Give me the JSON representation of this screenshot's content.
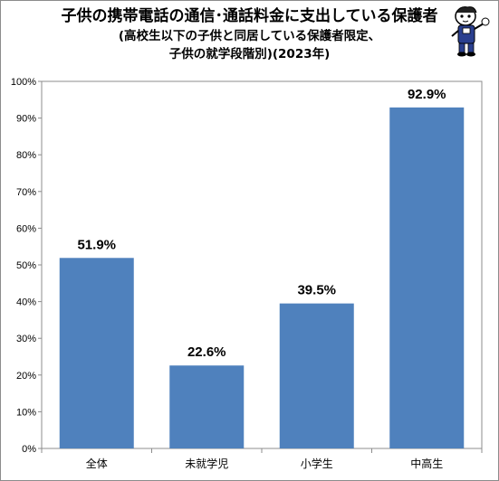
{
  "title": {
    "line1": "子供の携帯電話の通信･通話料金に支出している保護者",
    "line2": "(高校生以下の子供と同居している保護者限定、",
    "line3": "子供の就学段階別)(2023年)"
  },
  "mascot_icon": "mascot-character-icon",
  "colors": {
    "bar": "#4f81bd",
    "grid": "#8c8c8c"
  },
  "chart_data": {
    "type": "bar",
    "categories": [
      "全体",
      "未就学児",
      "小学生",
      "中高生"
    ],
    "values": [
      51.9,
      22.6,
      39.5,
      92.9
    ],
    "data_labels": [
      "51.9%",
      "22.6%",
      "39.5%",
      "92.9%"
    ],
    "yticks": [
      "0%",
      "10%",
      "20%",
      "30%",
      "40%",
      "50%",
      "60%",
      "70%",
      "80%",
      "90%",
      "100%"
    ],
    "ylim": [
      0,
      100
    ],
    "grid": "none",
    "legend": "none"
  }
}
